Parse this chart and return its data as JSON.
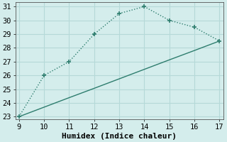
{
  "line1_x": [
    9,
    10,
    11,
    12,
    13,
    14,
    15,
    16,
    17
  ],
  "line1_y": [
    23,
    26,
    27,
    29,
    30.5,
    31,
    30,
    29.5,
    28.5
  ],
  "line2_x": [
    9,
    10,
    11,
    12,
    13,
    14,
    15,
    16,
    17
  ],
  "line2_y": [
    23,
    23.69,
    24.38,
    25.06,
    25.75,
    26.44,
    27.13,
    27.81,
    28.5
  ],
  "line_color": "#2e7d6e",
  "marker": "+",
  "marker_size": 5,
  "marker_lw": 1.2,
  "xlabel": "Humidex (Indice chaleur)",
  "xlim": [
    9,
    17
  ],
  "ylim": [
    23,
    31
  ],
  "yticks": [
    23,
    24,
    25,
    26,
    27,
    28,
    29,
    30,
    31
  ],
  "xticks": [
    9,
    10,
    11,
    12,
    13,
    14,
    15,
    16,
    17
  ],
  "background_color": "#d4edec",
  "grid_color": "#b5d9d8",
  "xlabel_fontsize": 8,
  "tick_fontsize": 7.5,
  "line_lw": 1.0
}
